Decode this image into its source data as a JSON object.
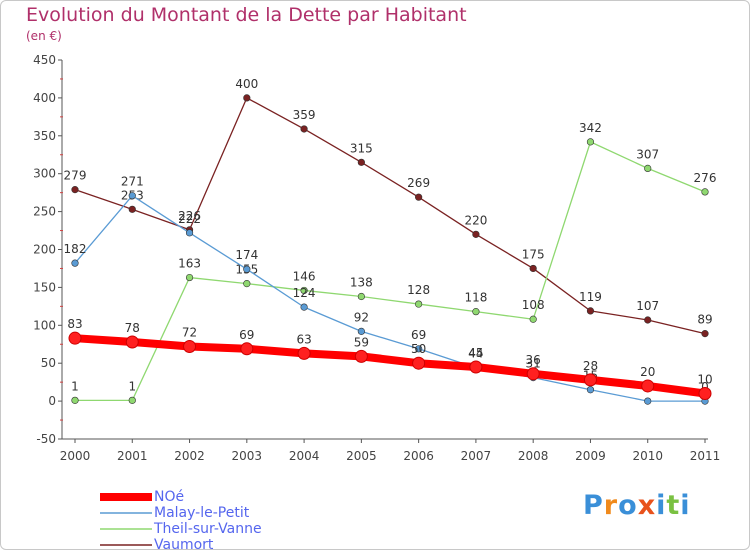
{
  "header": {
    "title": "Evolution du Montant de la Dette par Habitant",
    "subtitle": "(en €)"
  },
  "logo": {
    "text": "Proxiti",
    "letters": [
      "P",
      "r",
      "o",
      "x",
      "i",
      "t",
      "i"
    ],
    "colors": [
      "#3a8fd8",
      "#f08a1c",
      "#3a8fd8",
      "#e8521c",
      "#3a8fd8",
      "#7ac142",
      "#3a8fd8"
    ]
  },
  "chart_data": {
    "type": "line",
    "title": "Evolution du Montant de la Dette par Habitant",
    "ylabel": "(en €)",
    "xlabel": "",
    "x": [
      "2000",
      "2001",
      "2002",
      "2003",
      "2004",
      "2005",
      "2006",
      "2007",
      "2008",
      "2009",
      "2010",
      "2011"
    ],
    "ylim": [
      -50,
      450
    ],
    "yticks": [
      -50,
      0,
      50,
      100,
      150,
      200,
      250,
      300,
      350,
      400,
      450
    ],
    "grid": false,
    "legend": "bottom-left",
    "series": [
      {
        "name": "NOé",
        "color": "#ff0000",
        "values": [
          83,
          78,
          72,
          69,
          63,
          59,
          50,
          45,
          36,
          28,
          20,
          10
        ]
      },
      {
        "name": "Malay-le-Petit",
        "color": "#5a9bd4",
        "values": [
          182,
          271,
          222,
          174,
          124,
          92,
          69,
          44,
          31,
          15,
          0,
          0
        ]
      },
      {
        "name": "Theil-sur-Vanne",
        "color": "#8fd870",
        "values": [
          1,
          1,
          163,
          155,
          146,
          138,
          128,
          118,
          108,
          342,
          307,
          276
        ]
      },
      {
        "name": "Vaumort",
        "color": "#7a2222",
        "values": [
          279,
          253,
          226,
          400,
          359,
          315,
          269,
          220,
          175,
          119,
          107,
          89
        ]
      }
    ]
  }
}
